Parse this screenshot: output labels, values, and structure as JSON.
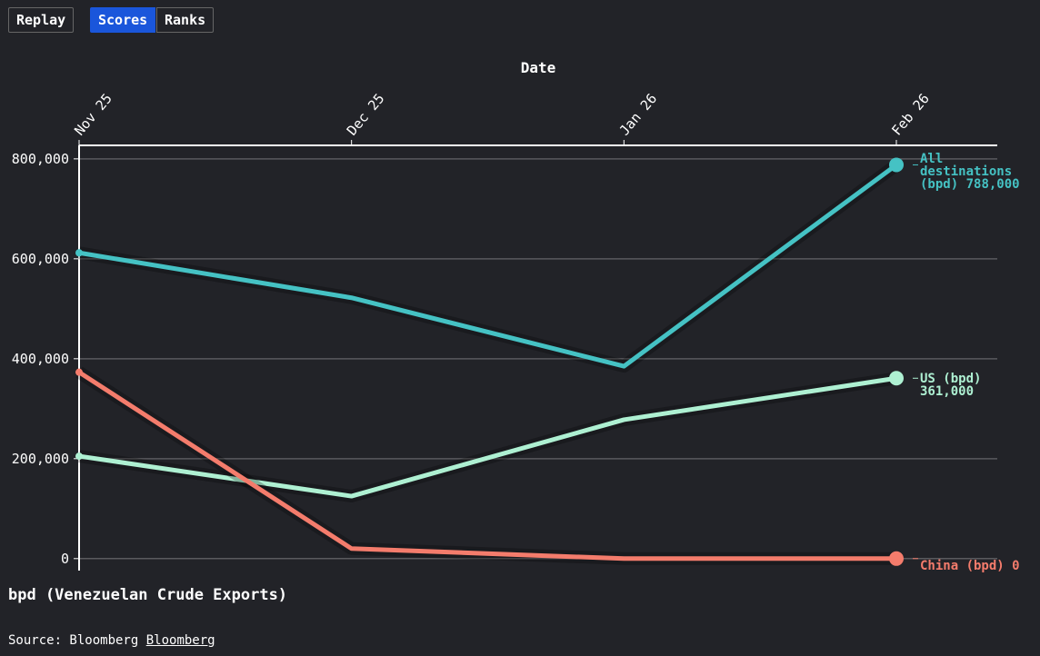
{
  "controls": {
    "replay": "Replay",
    "scores": "Scores",
    "ranks": "Ranks"
  },
  "chart_data": {
    "type": "line",
    "x_label": "Date",
    "y_label": "bpd (Venezuelan Crude Exports)",
    "source": "Source: Bloomberg",
    "source_link": "Bloomberg",
    "categories": [
      "Nov 25",
      "Dec 25",
      "Jan 26",
      "Feb 26"
    ],
    "series": [
      {
        "name": "All destinations (bpd)",
        "color": "#45c2c4",
        "values": [
          612000,
          522000,
          385000,
          788000
        ],
        "value_labels": [
          null,
          null,
          null,
          "788,000"
        ]
      },
      {
        "name": "US (bpd)",
        "color": "#aef0d2",
        "values": [
          205000,
          125000,
          278000,
          361000
        ],
        "value_labels": [
          null,
          null,
          null,
          "361,000"
        ]
      },
      {
        "name": "China (bpd)",
        "color": "#f47c6c",
        "values": [
          373000,
          20000,
          0,
          0
        ],
        "value_labels": [
          null,
          null,
          null,
          "0"
        ]
      }
    ],
    "ylim": [
      -24000,
      827000
    ],
    "yticks": [
      {
        "value": 0,
        "label": "0"
      },
      {
        "value": 200000,
        "label": "200,000"
      },
      {
        "value": 400000,
        "label": "400,000"
      },
      {
        "value": 600000,
        "label": "600,000"
      },
      {
        "value": 800000,
        "label": "800,000"
      }
    ],
    "grid": true
  }
}
